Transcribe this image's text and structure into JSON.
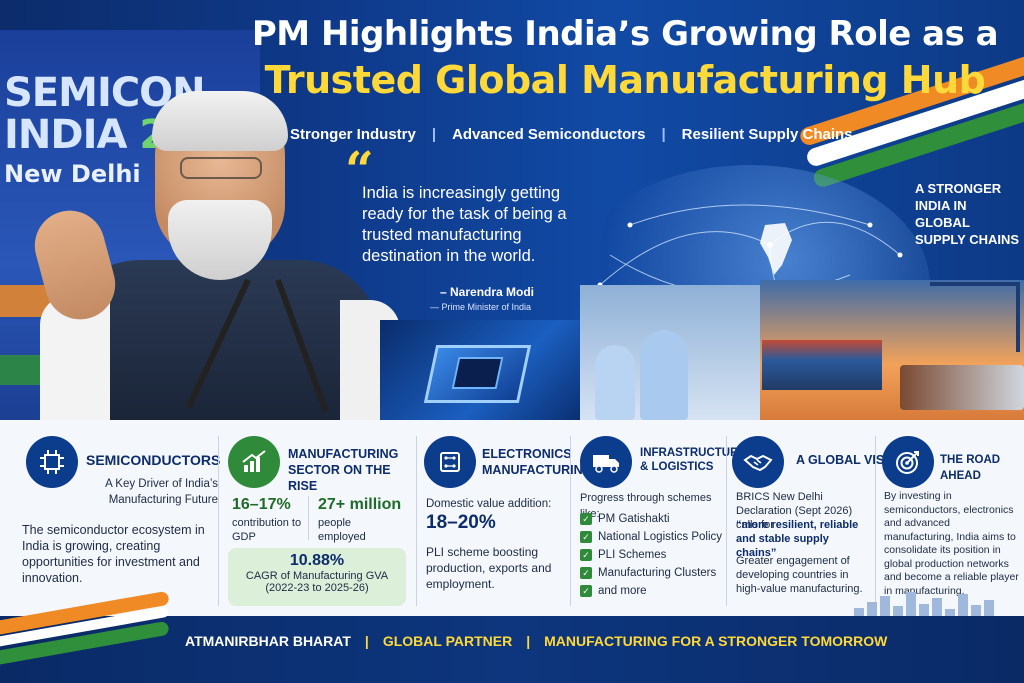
{
  "backdrop": {
    "event_line1": "SEMICON",
    "event_line2_text": "INDIA ",
    "event_year": "2026",
    "city": "New Delhi"
  },
  "header": {
    "title_line1": "PM Highlights India’s Growing Role as a",
    "title_line2": "Trusted Global Manufacturing Hub",
    "subtitles": [
      "Stronger Industry",
      "Advanced Semiconductors",
      "Resilient Supply Chains"
    ],
    "separator": "|"
  },
  "quote": {
    "mark": "“",
    "text": "India is increasingly getting ready for the task of being a trusted manufacturing destination in the world.",
    "author": "– Narendra Modi",
    "role": "— Prime Minister of India"
  },
  "side_label": "A STRONGER INDIA IN GLOBAL SUPPLY CHAINS",
  "cards": {
    "semiconductors": {
      "icon": "chip-icon",
      "title": "SEMICONDUCTORS",
      "subtitle": "A Key Driver of India’s Manufacturing Future",
      "body": "The semiconductor ecosystem in India is growing, creating opportunities for investment and innovation."
    },
    "manufacturing": {
      "icon": "growth-chart-icon",
      "title": "MANUFACTURING SECTOR ON THE RISE",
      "stat1_value": "16–17%",
      "stat1_label": "contribution to GDP",
      "stat2_value": "27+ million",
      "stat2_label": "people employed",
      "cagr_value": "10.88%",
      "cagr_label": "CAGR of Manufacturing GVA",
      "cagr_period": "(2022-23 to 2025-26)"
    },
    "electronics": {
      "icon": "circuit-board-icon",
      "title": "ELECTRONICS MANUFACTURING",
      "label": "Domestic value addition:",
      "value": "18–20%",
      "body": "PLI scheme boosting production, exports and employment."
    },
    "infrastructure": {
      "icon": "truck-icon",
      "title": "INFRASTRUCTURE & LOGISTICS",
      "intro": "Progress through schemes like:",
      "items": [
        "PM Gatishakti",
        "National Logistics Policy",
        "PLI Schemes",
        "Manufacturing Clusters",
        "and more"
      ]
    },
    "global_vision": {
      "icon": "handshake-icon",
      "title": "A GLOBAL VISION",
      "body1": "BRICS New Delhi Declaration (Sept 2026) calls for",
      "body1_bold": "“more resilient, reliable and stable supply chains”",
      "body2": "Greater engagement of developing countries in high-value manufacturing."
    },
    "road_ahead": {
      "icon": "target-icon",
      "title": "THE ROAD AHEAD",
      "body": "By investing in semiconductors, electronics and advanced manufacturing, India aims to consolidate its position in global production networks and become a reliable player in manufacturing."
    }
  },
  "footer": {
    "item1": "ATMANIRBHAR BHARAT",
    "item2": "GLOBAL PARTNER",
    "item3": "MANUFACTURING FOR A STRONGER TOMORROW",
    "separator": "|"
  },
  "colors": {
    "navy": "#0c2c6b",
    "yellow": "#ffd83a",
    "saffron": "#f08a24",
    "green": "#2f8a3a"
  }
}
